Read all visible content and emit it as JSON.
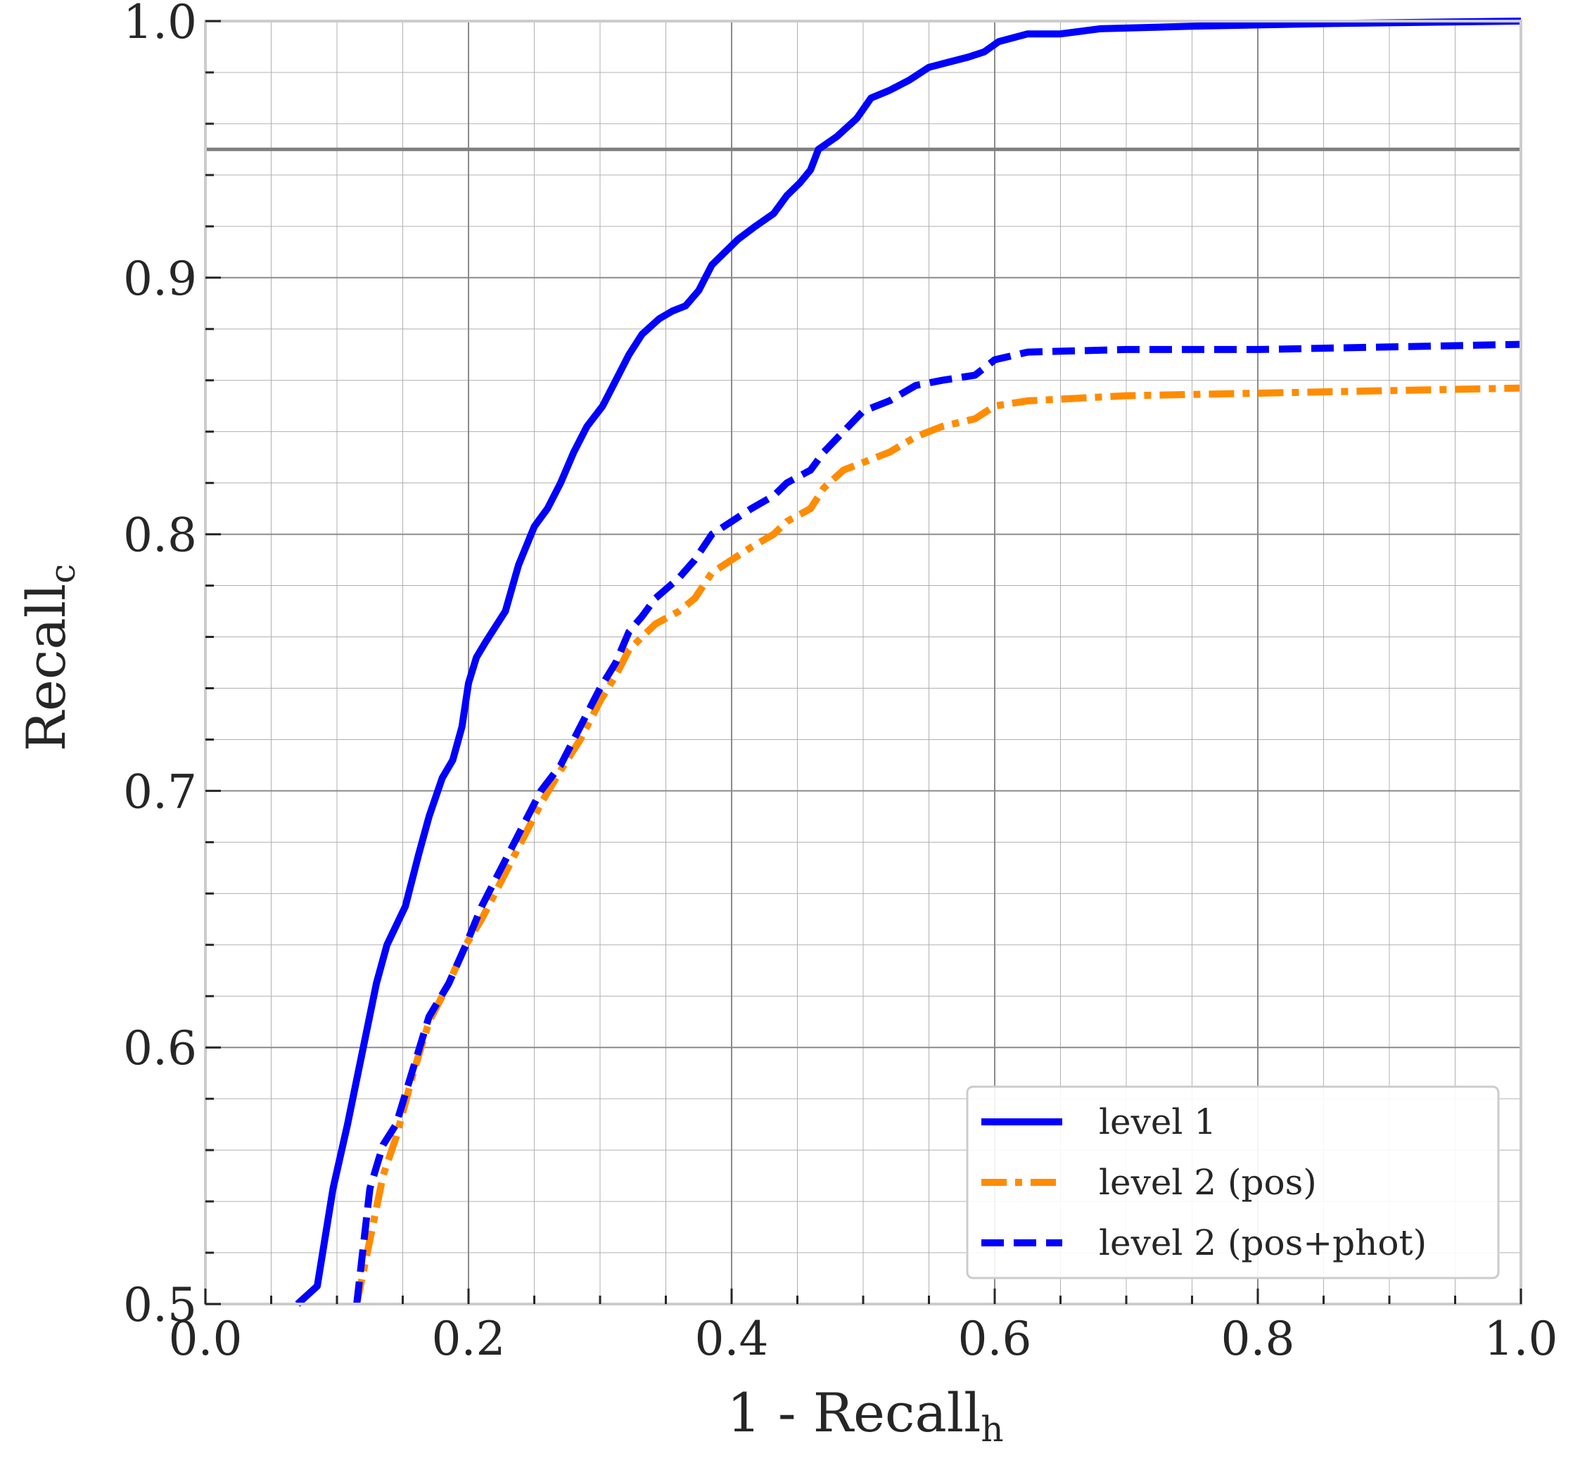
{
  "chart_data": {
    "type": "line",
    "title": "",
    "xlabel": {
      "main": "1 - Recall",
      "sub": "h"
    },
    "ylabel": {
      "main": "Recall",
      "sub": "c"
    },
    "xlim": [
      0.0,
      1.0
    ],
    "ylim": [
      0.5,
      1.0
    ],
    "xticks": [
      "0.0",
      "0.2",
      "0.4",
      "0.6",
      "0.8",
      "1.0"
    ],
    "yticks": [
      "0.5",
      "0.6",
      "0.7",
      "0.8",
      "0.9",
      "1.0"
    ],
    "grid": true,
    "minor_grid": true,
    "legend_position": "lower-right",
    "reference_line": {
      "y": 0.95,
      "color": "#808080"
    },
    "series": [
      {
        "name": "level 1",
        "color": "#0000ff",
        "style": "solid",
        "x": [
          0.07,
          0.085,
          0.097,
          0.108,
          0.12,
          0.13,
          0.138,
          0.152,
          0.162,
          0.17,
          0.18,
          0.188,
          0.195,
          0.2,
          0.206,
          0.213,
          0.228,
          0.238,
          0.25,
          0.26,
          0.27,
          0.28,
          0.29,
          0.302,
          0.312,
          0.322,
          0.332,
          0.345,
          0.355,
          0.365,
          0.375,
          0.385,
          0.395,
          0.405,
          0.418,
          0.432,
          0.442,
          0.452,
          0.46,
          0.466,
          0.48,
          0.495,
          0.506,
          0.52,
          0.535,
          0.55,
          0.565,
          0.58,
          0.592,
          0.603,
          0.625,
          0.65,
          0.68,
          0.75,
          0.85,
          1.0
        ],
        "y": [
          0.5,
          0.507,
          0.545,
          0.57,
          0.6,
          0.625,
          0.64,
          0.655,
          0.675,
          0.69,
          0.705,
          0.712,
          0.725,
          0.742,
          0.752,
          0.758,
          0.77,
          0.788,
          0.803,
          0.81,
          0.82,
          0.832,
          0.842,
          0.85,
          0.86,
          0.87,
          0.878,
          0.884,
          0.887,
          0.889,
          0.895,
          0.905,
          0.91,
          0.915,
          0.92,
          0.925,
          0.932,
          0.937,
          0.942,
          0.95,
          0.955,
          0.962,
          0.97,
          0.973,
          0.977,
          0.982,
          0.984,
          0.986,
          0.988,
          0.992,
          0.995,
          0.995,
          0.997,
          0.998,
          0.999,
          1.0
        ]
      },
      {
        "name": "level 2 (pos)",
        "color": "#ff8c00",
        "style": "dashdot",
        "x": [
          0.115,
          0.125,
          0.135,
          0.145,
          0.158,
          0.17,
          0.185,
          0.198,
          0.21,
          0.225,
          0.24,
          0.255,
          0.27,
          0.285,
          0.3,
          0.312,
          0.322,
          0.332,
          0.342,
          0.36,
          0.372,
          0.385,
          0.4,
          0.415,
          0.432,
          0.442,
          0.46,
          0.47,
          0.485,
          0.5,
          0.52,
          0.54,
          0.56,
          0.585,
          0.6,
          0.625,
          0.7,
          0.8,
          1.0
        ],
        "y": [
          0.5,
          0.525,
          0.55,
          0.565,
          0.59,
          0.61,
          0.625,
          0.64,
          0.65,
          0.665,
          0.68,
          0.695,
          0.708,
          0.72,
          0.735,
          0.745,
          0.755,
          0.76,
          0.765,
          0.77,
          0.775,
          0.785,
          0.79,
          0.795,
          0.8,
          0.805,
          0.81,
          0.818,
          0.825,
          0.828,
          0.832,
          0.838,
          0.842,
          0.845,
          0.85,
          0.852,
          0.854,
          0.855,
          0.857
        ]
      },
      {
        "name": "level 2 (pos+phot)",
        "color": "#0000ff",
        "style": "dashed",
        "x": [
          0.115,
          0.125,
          0.135,
          0.145,
          0.158,
          0.17,
          0.185,
          0.198,
          0.21,
          0.225,
          0.24,
          0.255,
          0.27,
          0.285,
          0.3,
          0.312,
          0.322,
          0.332,
          0.342,
          0.36,
          0.372,
          0.385,
          0.4,
          0.415,
          0.432,
          0.442,
          0.46,
          0.47,
          0.485,
          0.5,
          0.52,
          0.54,
          0.56,
          0.585,
          0.6,
          0.625,
          0.7,
          0.8,
          1.0
        ],
        "y": [
          0.5,
          0.545,
          0.562,
          0.57,
          0.592,
          0.612,
          0.625,
          0.64,
          0.655,
          0.67,
          0.685,
          0.7,
          0.71,
          0.725,
          0.74,
          0.75,
          0.762,
          0.768,
          0.775,
          0.783,
          0.79,
          0.8,
          0.805,
          0.81,
          0.815,
          0.82,
          0.825,
          0.832,
          0.84,
          0.848,
          0.852,
          0.858,
          0.86,
          0.862,
          0.868,
          0.871,
          0.872,
          0.872,
          0.874
        ]
      }
    ]
  }
}
